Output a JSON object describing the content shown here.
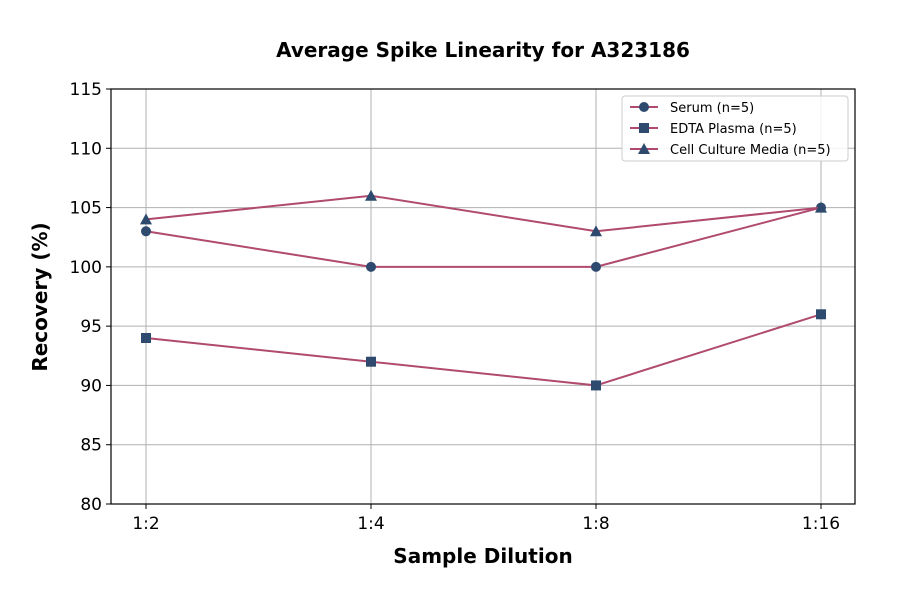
{
  "chart_data": {
    "type": "line",
    "title": "Average Spike Linearity for A323186",
    "xlabel": "Sample Dilution",
    "ylabel": "Recovery (%)",
    "categories": [
      "1:2",
      "1:4",
      "1:8",
      "1:16"
    ],
    "ylim": [
      80,
      115
    ],
    "yticks": [
      80,
      85,
      90,
      95,
      100,
      105,
      110,
      115
    ],
    "grid": true,
    "legend": "top-right",
    "line_color": "#b04a6e",
    "marker_color": "#2e4a6e",
    "series": [
      {
        "name": "Serum (n=5)",
        "marker": "circle",
        "values": [
          103,
          100,
          100,
          105
        ]
      },
      {
        "name": "EDTA Plasma (n=5)",
        "marker": "square",
        "values": [
          94,
          92,
          90,
          96
        ]
      },
      {
        "name": "Cell Culture Media (n=5)",
        "marker": "triangle",
        "values": [
          104,
          106,
          103,
          105
        ]
      }
    ]
  }
}
